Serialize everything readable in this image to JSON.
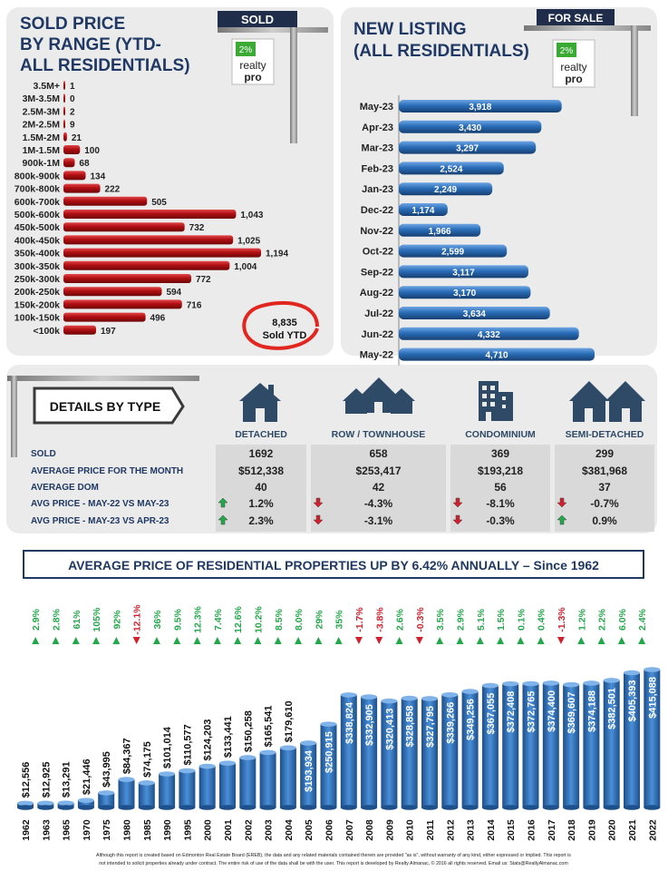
{
  "sold_panel": {
    "title_lines": [
      "SOLD PRICE",
      "BY RANGE (YTD-",
      "ALL RESIDENTIALS)"
    ],
    "sign_text": "SOLD",
    "logo": {
      "percent": "2%",
      "line1": "realty",
      "line2": "pro"
    },
    "total_value": "8,835",
    "total_label": "Sold YTD"
  },
  "listing_panel": {
    "title_lines": [
      "NEW LISTING",
      "(ALL RESIDENTIALS)"
    ],
    "sign_text": "FOR SALE",
    "logo": {
      "percent": "2%",
      "line1": "realty",
      "line2": "pro"
    }
  },
  "details": {
    "badge": "DETAILS BY TYPE",
    "types": [
      "DETACHED",
      "ROW / TOWNHOUSE",
      "CONDOMINIUM",
      "SEMI-DETACHED"
    ],
    "icons": [
      "detached-house-icon",
      "townhouse-icon",
      "condominium-icon",
      "semi-detached-icon"
    ],
    "rows": [
      {
        "label": "SOLD",
        "values": [
          "1692",
          "658",
          "369",
          "299"
        ]
      },
      {
        "label": "AVERAGE PRICE FOR THE MONTH",
        "values": [
          "$512,338",
          "$253,417",
          "$193,218",
          "$381,968"
        ]
      },
      {
        "label": "AVERAGE DOM",
        "values": [
          "40",
          "42",
          "56",
          "37"
        ]
      },
      {
        "label": "AVG PRICE - MAY-22 VS MAY-23",
        "values": [
          "1.2%",
          "-4.3%",
          "-8.1%",
          "-0.7%"
        ],
        "dirs": [
          "up",
          "down",
          "down",
          "down"
        ]
      },
      {
        "label": "AVG PRICE - MAY-23 VS APR-23",
        "values": [
          "2.3%",
          "-3.1%",
          "-0.3%",
          "0.9%"
        ],
        "dirs": [
          "up",
          "down",
          "down",
          "up"
        ]
      }
    ]
  },
  "annual_banner": "AVERAGE PRICE OF RESIDENTIAL PROPERTIES UP BY 6.42% ANNUALLY – Since 1962",
  "footer": {
    "line1": "Although this report is created based on Edmonton Real Estate Board (EREB), the data and any related materials contained therein are provided \"as is\", without warranty of any kind, either expressed or implied.  This report is",
    "line2": "not intended to solicit properties already under contract.  The entire risk of use of the data shall be with the user.  This report is developed by Realty Almanac, © 2016 all rights reserved. Email us: Stats@RealtyAlmanac.com"
  },
  "colors": {
    "red": "#b00f12",
    "blue": "#2a6db8",
    "green": "#22a84a",
    "down_red": "#d21f2b",
    "panel": "#ebebeb",
    "cell": "#d7d7d7"
  },
  "chart_data": [
    {
      "type": "bar",
      "orientation": "horizontal",
      "title": "SOLD PRICE BY RANGE (YTD- ALL RESIDENTIALS)",
      "categories": [
        "3.5M+",
        "3M-3.5M",
        "2.5M-3M",
        "2M-2.5M",
        "1.5M-2M",
        "1M-1.5M",
        "900k-1M",
        "800k-900k",
        "700k-800k",
        "600k-700k",
        "500k-600k",
        "450k-500k",
        "400k-450k",
        "350k-400k",
        "300k-350k",
        "250k-300k",
        "200k-250k",
        "150k-200k",
        "100k-150k",
        "<100k"
      ],
      "values": [
        1,
        0,
        2,
        9,
        21,
        100,
        68,
        134,
        222,
        505,
        1043,
        732,
        1025,
        1194,
        1004,
        772,
        594,
        716,
        496,
        197
      ],
      "labels": [
        "1",
        "0",
        "2",
        "9",
        "21",
        "100",
        "68",
        "134",
        "222",
        "505",
        "1,043",
        "732",
        "1,025",
        "1,194",
        "1,004",
        "772",
        "594",
        "716",
        "496",
        "197"
      ]
    },
    {
      "type": "bar",
      "orientation": "horizontal",
      "title": "NEW LISTING (ALL RESIDENTIALS)",
      "categories": [
        "May-23",
        "Apr-23",
        "Mar-23",
        "Feb-23",
        "Jan-23",
        "Dec-22",
        "Nov-22",
        "Oct-22",
        "Sep-22",
        "Aug-22",
        "Jul-22",
        "Jun-22",
        "May-22"
      ],
      "values": [
        3918,
        3430,
        3297,
        2524,
        2249,
        1174,
        1966,
        2599,
        3117,
        3170,
        3634,
        4332,
        4710
      ],
      "labels": [
        "3,918",
        "3,430",
        "3,297",
        "2,524",
        "2,249",
        "1,174",
        "1,966",
        "2,599",
        "3,117",
        "3,170",
        "3,634",
        "4,332",
        "4,710"
      ]
    },
    {
      "type": "bar",
      "title": "AVERAGE PRICE OF RESIDENTIAL PROPERTIES",
      "categories": [
        "1962",
        "1963",
        "1965",
        "1970",
        "1975",
        "1980",
        "1985",
        "1990",
        "1995",
        "2000",
        "2001",
        "2002",
        "2003",
        "2004",
        "2005",
        "2006",
        "2007",
        "2008",
        "2009",
        "2010",
        "2011",
        "2012",
        "2013",
        "2014",
        "2015",
        "2016",
        "2017",
        "2018",
        "2019",
        "2020",
        "2021",
        "2022"
      ],
      "values": [
        12556,
        12925,
        13291,
        21446,
        43995,
        84367,
        74175,
        101014,
        110577,
        124203,
        133441,
        150258,
        165541,
        179610,
        193934,
        250915,
        338824,
        332905,
        320413,
        328858,
        327795,
        339266,
        349256,
        367055,
        372408,
        372765,
        374400,
        369607,
        374188,
        382501,
        405393,
        415088
      ],
      "labels": [
        "$12,556",
        "$12,925",
        "$13,291",
        "$21,446",
        "$43,995",
        "$84,367",
        "$74,175",
        "$101,014",
        "$110,577",
        "$124,203",
        "$133,441",
        "$150,258",
        "$165,541",
        "$179,610",
        "$193,934",
        "$250,915",
        "$338,824",
        "$332,905",
        "$320,413",
        "$328,858",
        "$327,795",
        "$339,266",
        "$349,256",
        "$367,055",
        "$372,408",
        "$372,765",
        "$374,400",
        "$369,607",
        "$374,188",
        "$382,501",
        "$405,393",
        "$415,088"
      ],
      "changes": [
        "2.9%",
        "2.8%",
        "61%",
        "105%",
        "92%",
        "-12.1%",
        "36%",
        "9.5%",
        "12.3%",
        "7.4%",
        "12.6%",
        "10.2%",
        "8.5%",
        "8.0%",
        "29%",
        "35%",
        "-1.7%",
        "-3.8%",
        "2.6%",
        "-0.3%",
        "3.5%",
        "2.9%",
        "5.1%",
        "1.5%",
        "0.1%",
        "0.4%",
        "-1.3%",
        "1.2%",
        "2.2%",
        "6.0%",
        "2.4%"
      ],
      "change_dirs": [
        "up",
        "up",
        "up",
        "up",
        "up",
        "down",
        "up",
        "up",
        "up",
        "up",
        "up",
        "up",
        "up",
        "up",
        "up",
        "up",
        "down",
        "down",
        "up",
        "down",
        "up",
        "up",
        "up",
        "up",
        "up",
        "up",
        "down",
        "up",
        "up",
        "up",
        "up"
      ]
    }
  ]
}
